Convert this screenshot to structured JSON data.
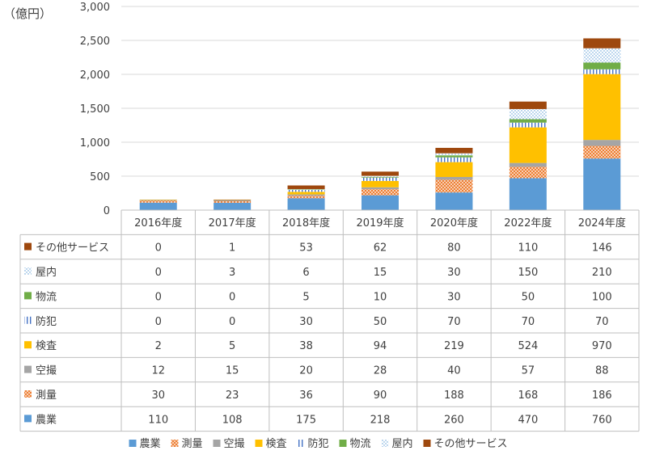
{
  "chart_data": {
    "type": "bar",
    "stacked": true,
    "unit_label": "（億円）",
    "ylim": [
      0,
      3000
    ],
    "yticks": [
      0,
      500,
      1000,
      1500,
      2000,
      2500,
      3000
    ],
    "ytick_labels": [
      "0",
      "500",
      "1,000",
      "1,500",
      "2,000",
      "2,500",
      "3,000"
    ],
    "grid": true,
    "categories": [
      "2016年度",
      "2017年度",
      "2018年度",
      "2019年度",
      "2020年度",
      "2022年度",
      "2024年度"
    ],
    "series": [
      {
        "name": "農業",
        "color": "#5B9BD5",
        "pattern": "solid",
        "values": [
          110,
          108,
          175,
          218,
          260,
          470,
          760
        ]
      },
      {
        "name": "測量",
        "color": "#ED7D31",
        "pattern": "crosshatch",
        "values": [
          30,
          23,
          36,
          90,
          188,
          168,
          186
        ]
      },
      {
        "name": "空撮",
        "color": "#A5A5A5",
        "pattern": "solid",
        "values": [
          12,
          15,
          20,
          28,
          40,
          57,
          88
        ]
      },
      {
        "name": "検査",
        "color": "#FFC000",
        "pattern": "solid",
        "values": [
          2,
          5,
          38,
          94,
          219,
          524,
          970
        ]
      },
      {
        "name": "防犯",
        "color": "#4472C4",
        "pattern": "vertical",
        "values": [
          0,
          0,
          30,
          50,
          70,
          70,
          70
        ]
      },
      {
        "name": "物流",
        "color": "#70AD47",
        "pattern": "solid",
        "values": [
          0,
          0,
          5,
          10,
          30,
          50,
          100
        ]
      },
      {
        "name": "屋内",
        "color": "#5B9BD5",
        "pattern": "dots",
        "values": [
          0,
          3,
          6,
          15,
          30,
          150,
          210
        ]
      },
      {
        "name": "その他サービス",
        "color": "#9E480E",
        "pattern": "solid",
        "values": [
          0,
          1,
          53,
          62,
          80,
          110,
          146
        ]
      }
    ],
    "table_row_order": [
      "その他サービス",
      "屋内",
      "物流",
      "防犯",
      "検査",
      "空撮",
      "測量",
      "農業"
    ],
    "legend_position": "bottom"
  }
}
